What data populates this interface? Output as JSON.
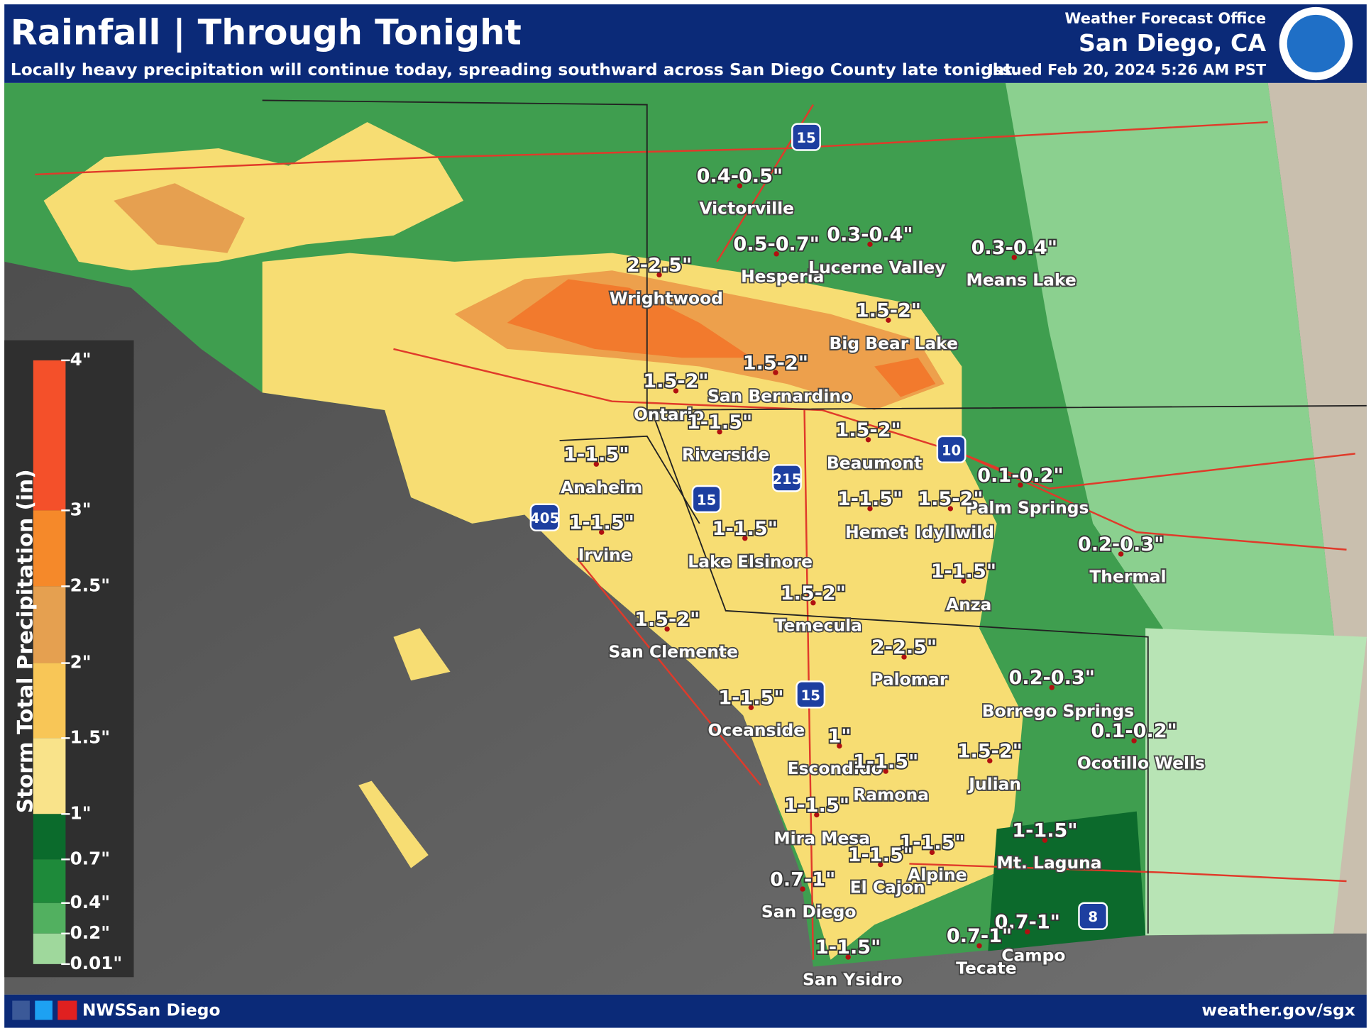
{
  "header": {
    "title": "Rainfall | Through Tonight",
    "subtitle": "Locally heavy precipitation will continue today, spreading southward across San Diego County late tonight.",
    "office_line": "Weather Forecast Office",
    "office": "San Diego, CA",
    "issued": "Issued Feb 20, 2024 5:26 AM PST"
  },
  "legend": {
    "title": "Storm Total Precipitation (in)",
    "ticks": [
      "4\"",
      "3\"",
      "2.5\"",
      "2\"",
      "1.5\"",
      "1\"",
      "0.7\"",
      "0.4\"",
      "0.2\"",
      "0.01\""
    ]
  },
  "highways": [
    "15",
    "10",
    "215",
    "15",
    "405",
    "15",
    "8"
  ],
  "locations": [
    {
      "name": "Victorville",
      "amount": "0.4-0.5\""
    },
    {
      "name": "Hesperia",
      "amount": "0.5-0.7\""
    },
    {
      "name": "Lucerne Valley",
      "amount": "0.3-0.4\""
    },
    {
      "name": "Means Lake",
      "amount": "0.3-0.4\""
    },
    {
      "name": "Wrightwood",
      "amount": "2-2.5\""
    },
    {
      "name": "Big Bear Lake",
      "amount": "1.5-2\""
    },
    {
      "name": "San Bernardino",
      "amount": "1.5-2\""
    },
    {
      "name": "Ontario",
      "amount": "1.5-2\""
    },
    {
      "name": "Riverside",
      "amount": "1-1.5\""
    },
    {
      "name": "Beaumont",
      "amount": "1.5-2\""
    },
    {
      "name": "Anaheim",
      "amount": "1-1.5\""
    },
    {
      "name": "Palm Springs",
      "amount": "0.1-0.2\""
    },
    {
      "name": "Hemet",
      "amount": "1-1.5\""
    },
    {
      "name": "Idyllwild",
      "amount": "1.5-2\""
    },
    {
      "name": "Irvine",
      "amount": "1-1.5\""
    },
    {
      "name": "Lake Elsinore",
      "amount": "1-1.5\""
    },
    {
      "name": "Thermal",
      "amount": "0.2-0.3\""
    },
    {
      "name": "Anza",
      "amount": "1-1.5\""
    },
    {
      "name": "Temecula",
      "amount": "1.5-2\""
    },
    {
      "name": "San Clemente",
      "amount": "1.5-2\""
    },
    {
      "name": "Palomar",
      "amount": "2-2.5\""
    },
    {
      "name": "Borrego Springs",
      "amount": "0.2-0.3\""
    },
    {
      "name": "Oceanside",
      "amount": "1-1.5\""
    },
    {
      "name": "Escondido",
      "amount": "1\""
    },
    {
      "name": "Ocotillo Wells",
      "amount": "0.1-0.2\""
    },
    {
      "name": "Julian",
      "amount": "1.5-2\""
    },
    {
      "name": "Ramona",
      "amount": "1-1.5\""
    },
    {
      "name": "Mira Mesa",
      "amount": "1-1.5\""
    },
    {
      "name": "Mt. Laguna",
      "amount": "1-1.5\""
    },
    {
      "name": "Alpine",
      "amount": "1-1.5\""
    },
    {
      "name": "El Cajon",
      "amount": "1-1.5\""
    },
    {
      "name": "San Diego",
      "amount": "0.7-1\""
    },
    {
      "name": "Campo",
      "amount": "0.7-1\""
    },
    {
      "name": "Tecate",
      "amount": "0.7-1\""
    },
    {
      "name": "San Ysidro",
      "amount": "1-1.5\""
    }
  ],
  "footer": {
    "social": "NWSSan Diego",
    "url": "weather.gov/sgx"
  }
}
